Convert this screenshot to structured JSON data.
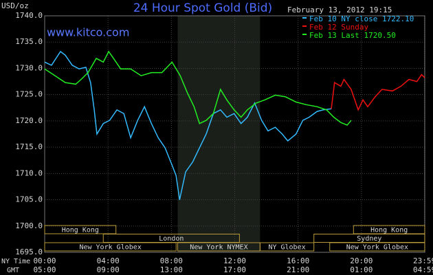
{
  "chart_data": {
    "type": "line",
    "title": "24 Hour Spot Gold (Bid)",
    "subtitle": "www.kitco.com",
    "timestamp": "February 13, 2012 19:15",
    "y_label": "USD/oz",
    "x_label": "NY Time",
    "x2_label": "GMT",
    "xlim": [
      0,
      24
    ],
    "ylim": [
      1695,
      1740
    ],
    "grid": true,
    "xticks": [
      {
        "value": 0,
        "label": "00:00"
      },
      {
        "value": 4,
        "label": "04:00"
      },
      {
        "value": 8,
        "label": "08:00"
      },
      {
        "value": 12,
        "label": "12:00"
      },
      {
        "value": 16,
        "label": "16:00"
      },
      {
        "value": 20,
        "label": "20:00"
      },
      {
        "value": 23.98,
        "label": "23:59"
      }
    ],
    "x2_tick_labels": [
      "05:00",
      "09:00",
      "13:00",
      "17:00",
      "21:00",
      "01:00",
      "04:59"
    ],
    "yticks": [
      {
        "value": 1695,
        "label": "1695.0"
      },
      {
        "value": 1700,
        "label": "1700.0"
      },
      {
        "value": 1705,
        "label": "1705.0"
      },
      {
        "value": 1710,
        "label": "1710.0"
      },
      {
        "value": 1715,
        "label": "1715.0"
      },
      {
        "value": 1720,
        "label": "1720.0"
      },
      {
        "value": 1725,
        "label": "1725.0"
      },
      {
        "value": 1730,
        "label": "1730.0"
      },
      {
        "value": 1735,
        "label": "1735.0"
      },
      {
        "value": 1740,
        "label": "1740.0"
      }
    ],
    "sessions": [
      "Hong Kong",
      "London",
      "New York Globex",
      "New York NYMEX",
      "NY Globex",
      "Sydney",
      "Hong Kong",
      "New York Globex"
    ],
    "series": [
      {
        "name": "Feb 10 NY close 1722.10",
        "color": "#33bbff",
        "x": [
          0,
          0.43,
          1.0,
          1.3,
          1.74,
          2.17,
          2.6,
          2.9,
          3.13,
          3.3,
          3.7,
          4.1,
          4.56,
          5.0,
          5.43,
          5.87,
          6.3,
          6.74,
          7.17,
          7.6,
          8.04,
          8.3,
          8.52,
          8.9,
          9.35,
          9.78,
          10.2,
          10.65,
          11.1,
          11.5,
          11.96,
          12.4,
          12.8,
          13.26,
          13.7,
          14.1,
          14.56,
          15.0,
          15.35,
          15.87,
          16.3,
          16.7,
          17.2,
          17.6,
          18.1
        ],
        "values": [
          1731.2,
          1730.6,
          1733.2,
          1732.5,
          1730.6,
          1729.9,
          1730.2,
          1727.3,
          1722.1,
          1717.5,
          1719.5,
          1720.1,
          1722.1,
          1721.4,
          1716.8,
          1720.1,
          1722.7,
          1719.5,
          1716.8,
          1714.9,
          1711.6,
          1709.6,
          1705.0,
          1710.3,
          1712.2,
          1714.9,
          1717.5,
          1721.4,
          1722.1,
          1720.7,
          1721.4,
          1719.5,
          1720.7,
          1723.4,
          1720.1,
          1718.1,
          1718.8,
          1717.5,
          1716.2,
          1717.5,
          1720.1,
          1720.7,
          1721.8,
          1722.1,
          1722.3
        ]
      },
      {
        "name": "Feb 12 Sunday",
        "color": "#ee1111",
        "x": [
          18.1,
          18.3,
          18.7,
          18.9,
          19.35,
          19.8,
          20.1,
          20.4,
          20.87,
          21.3,
          21.96,
          22.5,
          23.0,
          23.5,
          23.8,
          24.0
        ],
        "values": [
          1722.3,
          1727.3,
          1726.6,
          1727.9,
          1726.0,
          1722.1,
          1724.0,
          1722.7,
          1724.6,
          1726.0,
          1725.7,
          1726.6,
          1727.9,
          1727.5,
          1728.8,
          1728.2
        ]
      },
      {
        "name": "Feb 13 Last 1720.50",
        "color": "#22ee22",
        "x": [
          0,
          0.65,
          1.3,
          1.96,
          2.3,
          2.74,
          3.26,
          3.7,
          4.04,
          4.35,
          4.8,
          5.43,
          6.09,
          6.74,
          7.4,
          8.04,
          8.56,
          9.0,
          9.43,
          9.78,
          10.2,
          10.65,
          11.1,
          11.5,
          11.96,
          12.4,
          12.8,
          13.35,
          13.9,
          14.56,
          15.2,
          15.87,
          16.5,
          17.2,
          17.8,
          18.26,
          18.7,
          19.1,
          19.35
        ],
        "values": [
          1729.9,
          1728.6,
          1727.3,
          1727.0,
          1727.9,
          1729.2,
          1731.9,
          1731.2,
          1733.2,
          1731.9,
          1729.9,
          1729.9,
          1728.6,
          1729.2,
          1729.2,
          1731.2,
          1728.6,
          1725.4,
          1722.7,
          1719.5,
          1720.1,
          1721.4,
          1726.0,
          1724.0,
          1722.1,
          1720.7,
          1722.1,
          1723.4,
          1724.0,
          1724.9,
          1724.6,
          1723.6,
          1723.1,
          1722.7,
          1722.1,
          1720.7,
          1719.7,
          1719.2,
          1720.1
        ]
      }
    ]
  }
}
